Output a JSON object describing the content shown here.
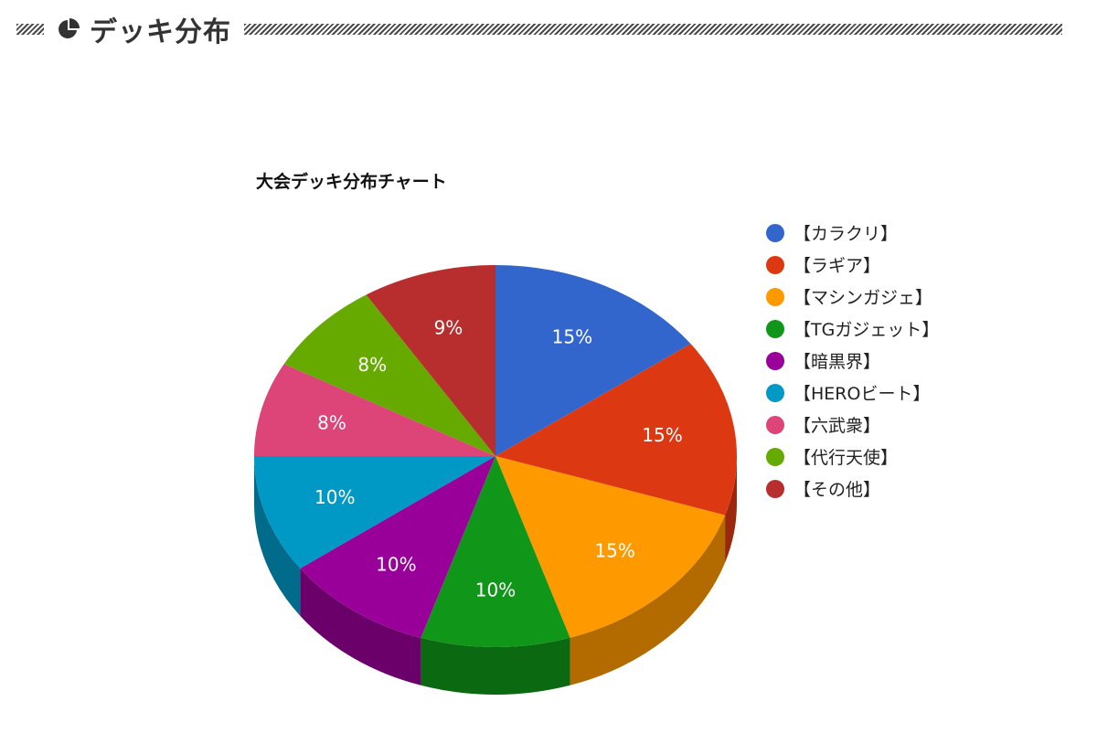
{
  "header": {
    "title": "デッキ分布",
    "icon": "pie-chart-icon"
  },
  "chart_data": {
    "type": "pie",
    "style": "3d",
    "title": "大会デッキ分布チャート",
    "legend_position": "right",
    "slices": [
      {
        "label": "【カラクリ】",
        "value": 15,
        "display": "15%",
        "color": "#3366cc",
        "side_color": "#24478f"
      },
      {
        "label": "【ラギア】",
        "value": 15,
        "display": "15%",
        "color": "#dc3912",
        "side_color": "#9a280d"
      },
      {
        "label": "【マシンガジェ】",
        "value": 15,
        "display": "15%",
        "color": "#ff9900",
        "side_color": "#b36b00"
      },
      {
        "label": "【TGガジェット】",
        "value": 10,
        "display": "10%",
        "color": "#109618",
        "side_color": "#0b6911"
      },
      {
        "label": "【暗黒界】",
        "value": 10,
        "display": "10%",
        "color": "#990099",
        "side_color": "#6b006b"
      },
      {
        "label": "【HEROビート】",
        "value": 10,
        "display": "10%",
        "color": "#0099c6",
        "side_color": "#006b8b"
      },
      {
        "label": "【六武衆】",
        "value": 8,
        "display": "8%",
        "color": "#dd4477",
        "side_color": "#9b3053"
      },
      {
        "label": "【代行天使】",
        "value": 8,
        "display": "8%",
        "color": "#66aa00",
        "side_color": "#477700"
      },
      {
        "label": "【その他】",
        "value": 9,
        "display": "9%",
        "color": "#b82e2e",
        "side_color": "#812020"
      }
    ]
  }
}
